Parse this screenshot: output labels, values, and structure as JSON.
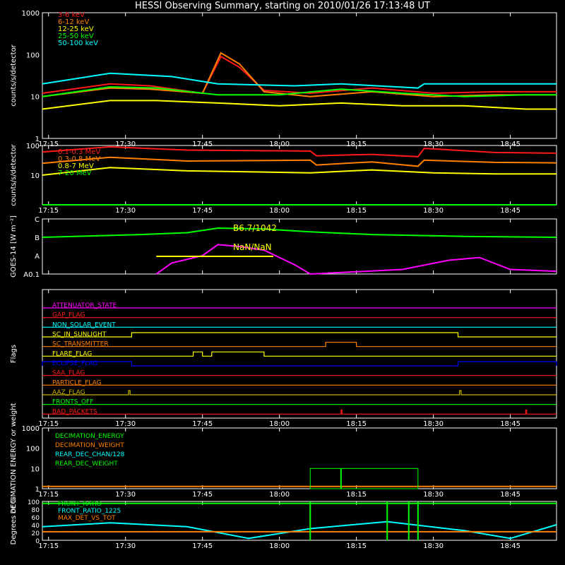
{
  "title": "HESSI Observing Summary, starting on 2010/01/26 17:13:48 UT",
  "time_ticks": [
    "17:15",
    "17:30",
    "17:45",
    "18:00",
    "18:15",
    "18:30",
    "18:45"
  ],
  "colors": {
    "white": "#ffffff",
    "red": "#ff1a1a",
    "orange": "#ff8000",
    "yellow": "#ffff00",
    "green": "#00ff00",
    "cyan": "#00ffff",
    "magenta": "#ff00ff",
    "blue": "#0000ff",
    "olive": "#c8b400"
  },
  "chart_data": [
    {
      "type": "line",
      "scale": "log",
      "ylabel": "counts/s/detector",
      "yticks": [
        "1",
        "10",
        "100",
        "1000"
      ],
      "ylim": [
        1,
        1000
      ],
      "series": [
        {
          "name": "3-6 keV",
          "color": "#ff1a1a",
          "points": [
            [
              17.23,
              12
            ],
            [
              17.45,
              20
            ],
            [
              17.58,
              18
            ],
            [
              17.75,
              12
            ],
            [
              17.81,
              90
            ],
            [
              17.87,
              50
            ],
            [
              17.95,
              14
            ],
            [
              18.1,
              12
            ],
            [
              18.3,
              16
            ],
            [
              18.5,
              12
            ],
            [
              18.7,
              13
            ],
            [
              18.9,
              13
            ]
          ]
        },
        {
          "name": "6-12 keV",
          "color": "#ff8000",
          "points": [
            [
              17.23,
              10
            ],
            [
              17.45,
              16
            ],
            [
              17.58,
              15
            ],
            [
              17.75,
              12
            ],
            [
              17.81,
              110
            ],
            [
              17.87,
              60
            ],
            [
              17.95,
              13
            ],
            [
              18.1,
              10
            ],
            [
              18.3,
              13
            ],
            [
              18.5,
              10
            ],
            [
              18.7,
              11
            ],
            [
              18.9,
              11
            ]
          ]
        },
        {
          "name": "12-25 keV",
          "color": "#ffff00",
          "points": [
            [
              17.23,
              5
            ],
            [
              17.45,
              8
            ],
            [
              17.6,
              8
            ],
            [
              17.8,
              7
            ],
            [
              18.0,
              6
            ],
            [
              18.2,
              7
            ],
            [
              18.4,
              6
            ],
            [
              18.6,
              6
            ],
            [
              18.8,
              5
            ],
            [
              18.9,
              5
            ]
          ]
        },
        {
          "name": "25-50 keV",
          "color": "#00ff00",
          "points": [
            [
              17.23,
              10
            ],
            [
              17.45,
              17
            ],
            [
              17.6,
              16
            ],
            [
              17.8,
              11
            ],
            [
              18.0,
              11
            ],
            [
              18.2,
              15
            ],
            [
              18.4,
              12
            ],
            [
              18.6,
              10
            ],
            [
              18.8,
              11
            ],
            [
              18.9,
              11
            ]
          ]
        },
        {
          "name": "50-100 keV",
          "color": "#00ffff",
          "points": [
            [
              17.23,
              20
            ],
            [
              17.45,
              36
            ],
            [
              17.65,
              30
            ],
            [
              17.8,
              20
            ],
            [
              18.05,
              18
            ],
            [
              18.2,
              20
            ],
            [
              18.45,
              16
            ],
            [
              18.47,
              20
            ],
            [
              18.7,
              20
            ],
            [
              18.9,
              20
            ]
          ]
        }
      ]
    },
    {
      "type": "line",
      "scale": "log",
      "ylabel": "counts/s/detector",
      "yticks": [
        "10",
        "100"
      ],
      "ylim": [
        1,
        100
      ],
      "series": [
        {
          "name": "0.1-0.3 MeV",
          "color": "#ff1a1a",
          "points": [
            [
              17.23,
              60
            ],
            [
              17.45,
              90
            ],
            [
              17.7,
              70
            ],
            [
              18.1,
              65
            ],
            [
              18.12,
              45
            ],
            [
              18.3,
              50
            ],
            [
              18.45,
              42
            ],
            [
              18.47,
              80
            ],
            [
              18.7,
              58
            ],
            [
              18.9,
              55
            ]
          ]
        },
        {
          "name": "0.3-0.8 MeV",
          "color": "#ff8000",
          "points": [
            [
              17.23,
              25
            ],
            [
              17.45,
              40
            ],
            [
              17.7,
              30
            ],
            [
              18.1,
              32
            ],
            [
              18.12,
              22
            ],
            [
              18.3,
              28
            ],
            [
              18.45,
              20
            ],
            [
              18.47,
              32
            ],
            [
              18.7,
              27
            ],
            [
              18.9,
              26
            ]
          ]
        },
        {
          "name": "0.8-7 MeV",
          "color": "#ffff00",
          "points": [
            [
              17.23,
              10
            ],
            [
              17.45,
              18
            ],
            [
              17.7,
              14
            ],
            [
              18.1,
              12
            ],
            [
              18.3,
              15
            ],
            [
              18.5,
              12
            ],
            [
              18.7,
              11
            ],
            [
              18.9,
              11
            ]
          ]
        },
        {
          "name": "7-20 MeV",
          "color": "#00ff00",
          "points": [
            [
              17.23,
              1
            ],
            [
              18.9,
              1
            ]
          ]
        }
      ]
    },
    {
      "type": "line",
      "scale": "log",
      "ylabel": "GOES-14 [W m⁻²]",
      "yticks": [
        "A0.1",
        "A",
        "B",
        "C"
      ],
      "series": [
        {
          "name": "B6.7/1042",
          "color": "#00ff00",
          "points": [
            [
              17.23,
              4.0
            ],
            [
              17.55,
              4.3
            ],
            [
              17.7,
              4.5
            ],
            [
              17.8,
              5.0
            ],
            [
              17.95,
              4.9
            ],
            [
              18.1,
              4.6
            ],
            [
              18.3,
              4.3
            ],
            [
              18.6,
              4.1
            ],
            [
              18.9,
              4.0
            ]
          ]
        },
        {
          "name": "NaN/NaN",
          "color": "#ff00ff",
          "points": [
            [
              17.6,
              0
            ],
            [
              17.65,
              1.2
            ],
            [
              17.75,
              2.0
            ],
            [
              17.8,
              3.2
            ],
            [
              17.87,
              3.0
            ],
            [
              17.95,
              2.6
            ],
            [
              18.05,
              1.0
            ],
            [
              18.1,
              0
            ],
            [
              18.4,
              0.5
            ],
            [
              18.55,
              1.5
            ],
            [
              18.65,
              1.8
            ],
            [
              18.75,
              0.5
            ],
            [
              18.9,
              0.3
            ]
          ]
        }
      ],
      "annotations": [
        "B6.7/1042",
        "NaN/NaN"
      ]
    },
    {
      "type": "table",
      "ylabel": "Flags",
      "flags": [
        {
          "name": "ATTENUATOR_STATE",
          "color": "#ff00ff",
          "on": []
        },
        {
          "name": "GAP_FLAG",
          "color": "#ff1a1a",
          "on": []
        },
        {
          "name": "NON_SOLAR_EVENT",
          "color": "#00ffff",
          "on": []
        },
        {
          "name": "SC_IN_SUNLIGHT",
          "color": "#ffff00",
          "on": [
            [
              17.52,
              18.58
            ]
          ]
        },
        {
          "name": "SC_TRANSMITTER",
          "color": "#ff8000",
          "on": [
            [
              18.15,
              18.25
            ]
          ]
        },
        {
          "name": "FLARE_FLAG",
          "color": "#ffff00",
          "on": [
            [
              17.72,
              17.75
            ],
            [
              17.78,
              17.95
            ]
          ]
        },
        {
          "name": "ECLIPSE_FLAG",
          "color": "#0000ff",
          "on": [
            [
              17.23,
              17.52
            ],
            [
              18.58,
              18.9
            ]
          ]
        },
        {
          "name": "SAA_FLAG",
          "color": "#ff1a1a",
          "on": []
        },
        {
          "name": "PARTICLE_FLAG",
          "color": "#ff8000",
          "on": []
        },
        {
          "name": "AAZ_FLAG",
          "color": "#c8b400",
          "on": [
            [
              17.51,
              17.515
            ],
            [
              18.585,
              18.59
            ]
          ]
        },
        {
          "name": "FRONTS_OFF",
          "color": "#00ff00",
          "on": []
        },
        {
          "name": "BAD_PACKETS",
          "color": "#ff1a1a",
          "on": [
            [
              18.2,
              18.203
            ],
            [
              18.8,
              18.803
            ]
          ]
        }
      ]
    },
    {
      "type": "line",
      "scale": "log",
      "ylabel": "DECIMATION ENERGY or weight",
      "yticks": [
        "1",
        "10",
        "100",
        "1000"
      ],
      "ylim": [
        1,
        1000
      ],
      "series": [
        {
          "name": "DECIMATION_ENERGY",
          "color": "#00ff00",
          "points": []
        },
        {
          "name": "DECIMATION_WEIGHT",
          "color": "#ff8000",
          "points": [
            [
              17.23,
              1.3
            ],
            [
              18.9,
              1.3
            ]
          ]
        },
        {
          "name": "REAR_DEC_CHAN/128",
          "color": "#00ffff",
          "points": []
        },
        {
          "name": "REAR_DEC_WEIGHT",
          "color": "#00ff00",
          "points": []
        }
      ]
    },
    {
      "type": "line",
      "ylabel": "Degrees or %",
      "yticks": [
        "0",
        "20",
        "40",
        "60",
        "80",
        "100"
      ],
      "ylim": [
        0,
        100
      ],
      "series": [
        {
          "name": "FRONT_RATIO",
          "color": "#00ff00",
          "points": [
            [
              17.23,
              95
            ],
            [
              18.9,
              95
            ]
          ]
        },
        {
          "name": "FRONT_RATIO_1225",
          "color": "#00ffff",
          "points": [
            [
              17.23,
              35
            ],
            [
              17.45,
              45
            ],
            [
              17.7,
              35
            ],
            [
              17.9,
              5
            ],
            [
              18.1,
              30
            ],
            [
              18.35,
              48
            ],
            [
              18.6,
              25
            ],
            [
              18.75,
              5
            ],
            [
              18.9,
              40
            ]
          ]
        },
        {
          "name": "MAX_DET_VS_TOT",
          "color": "#ff8000",
          "points": [
            [
              17.23,
              22
            ],
            [
              18.9,
              22
            ]
          ]
        }
      ]
    }
  ]
}
